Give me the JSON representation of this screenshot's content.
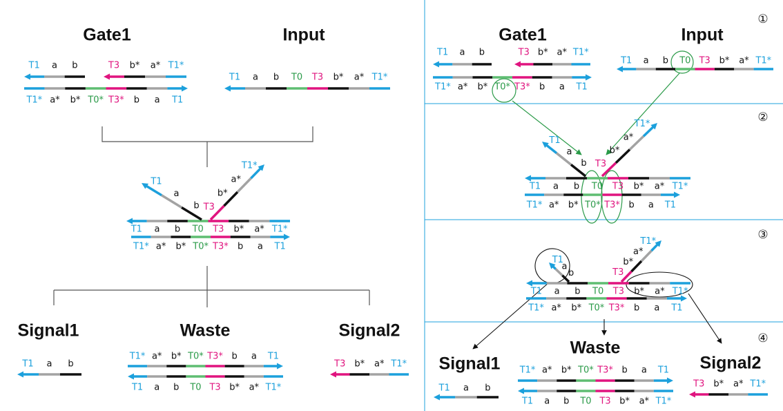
{
  "segment_colors": [
    "#1ca0dc",
    "#a3a3a3",
    "#111111",
    "#5fbd72",
    "#e0147f"
  ],
  "label_colors": [
    "#1ca0dc",
    "#111111",
    "#111111",
    "#2a9a48",
    "#e0147f"
  ],
  "left": {
    "titles": [
      "Gate1",
      "Input",
      "Signal1",
      "Waste",
      "Signal2"
    ],
    "strands": [
      {
        "labels": [
          "T1",
          "a",
          "b"
        ],
        "colors": [
          0,
          1,
          2
        ]
      },
      {
        "labels": [
          "T3",
          "b*",
          "a*",
          "T1*"
        ],
        "colors": [
          4,
          2,
          1,
          0
        ]
      },
      {
        "labels": [
          "T1*",
          "a*",
          "b*",
          "T0*",
          "T3*",
          "b",
          "a",
          "T1"
        ],
        "colors": [
          0,
          1,
          2,
          3,
          4,
          2,
          1,
          0
        ]
      },
      {
        "labels": [
          "T1",
          "a",
          "b",
          "T0",
          "T3",
          "b*",
          "a*",
          "T1*"
        ],
        "colors": [
          0,
          1,
          2,
          3,
          4,
          2,
          1,
          0
        ]
      },
      {
        "labels": [
          "T1",
          "a",
          "b",
          "T0",
          "T3",
          "b*",
          "a*",
          "T1*"
        ],
        "colors": [
          0,
          1,
          2,
          3,
          4,
          2,
          1,
          0
        ]
      },
      {
        "labels": [
          "T1*",
          "a*",
          "b*",
          "T0*",
          "T3*",
          "b",
          "a",
          "T1"
        ],
        "colors": [
          0,
          1,
          2,
          3,
          4,
          2,
          1,
          0
        ]
      },
      {
        "labels": [
          "b",
          "a",
          "T1"
        ],
        "colors": [
          2,
          1,
          0
        ]
      },
      {
        "labels": [
          "T3",
          "b*",
          "a*",
          "T1*"
        ],
        "colors": [
          4,
          2,
          1,
          0
        ]
      },
      {
        "labels": [
          "T1",
          "a",
          "b"
        ],
        "colors": [
          0,
          1,
          2
        ]
      },
      {
        "labels": [
          "T1*",
          "a*",
          "b*",
          "T0*",
          "T3*",
          "b",
          "a",
          "T1"
        ],
        "colors": [
          0,
          1,
          2,
          3,
          4,
          2,
          1,
          0
        ]
      },
      {
        "labels": [
          "T1",
          "a",
          "b",
          "T0",
          "T3",
          "b*",
          "a*",
          "T1*"
        ],
        "colors": [
          0,
          1,
          2,
          3,
          4,
          2,
          1,
          0
        ]
      },
      {
        "labels": [
          "T3",
          "b*",
          "a*",
          "T1*"
        ],
        "colors": [
          4,
          2,
          1,
          0
        ]
      }
    ]
  },
  "right": {
    "titles": [
      "Gate1",
      "Input",
      "Waste",
      "Signal1",
      "Signal2"
    ],
    "steps": [
      "①",
      "②",
      "③",
      "④"
    ],
    "strands": [
      {
        "labels": [
          "T1",
          "a",
          "b"
        ],
        "colors": [
          0,
          1,
          2
        ]
      },
      {
        "labels": [
          "T3",
          "b*",
          "a*",
          "T1*"
        ],
        "colors": [
          4,
          2,
          1,
          0
        ]
      },
      {
        "labels": [
          "T1*",
          "a*",
          "b*",
          "T0*",
          "T3*",
          "b",
          "a",
          "T1"
        ],
        "colors": [
          0,
          1,
          2,
          3,
          4,
          2,
          1,
          0
        ]
      },
      {
        "labels": [
          "T1",
          "a",
          "b",
          "T0",
          "T3",
          "b*",
          "a*",
          "T1*"
        ],
        "colors": [
          0,
          1,
          2,
          3,
          4,
          2,
          1,
          0
        ]
      },
      {
        "labels": [
          "T1",
          "a",
          "b",
          "T0",
          "T3",
          "b*",
          "a*",
          "T1*"
        ],
        "colors": [
          0,
          1,
          2,
          3,
          4,
          2,
          1,
          0
        ]
      },
      {
        "labels": [
          "T1*",
          "a*",
          "b*",
          "T0*",
          "T3*",
          "b",
          "a",
          "T1"
        ],
        "colors": [
          0,
          1,
          2,
          3,
          4,
          2,
          1,
          0
        ]
      },
      {
        "labels": [
          "b",
          "a",
          "T1"
        ],
        "colors": [
          2,
          1,
          0
        ]
      },
      {
        "labels": [
          "T3",
          "b*",
          "a*",
          "T1*"
        ],
        "colors": [
          4,
          2,
          1,
          0
        ]
      },
      {
        "labels": [
          "T1",
          "a",
          "b",
          "T0",
          "T3",
          "b*",
          "a*",
          "T1*"
        ],
        "colors": [
          0,
          1,
          2,
          3,
          4,
          2,
          1,
          0
        ]
      },
      {
        "labels": [
          "T1*",
          "a*",
          "b*",
          "T0*",
          "T3*",
          "b",
          "a",
          "T1"
        ],
        "colors": [
          0,
          1,
          2,
          3,
          4,
          2,
          1,
          0
        ]
      },
      {
        "labels": [
          "b",
          "a",
          "T1"
        ],
        "colors": [
          2,
          1,
          0
        ]
      },
      {
        "labels": [
          "T3",
          "b*",
          "a*",
          "T1*"
        ],
        "colors": [
          4,
          2,
          1,
          0
        ]
      },
      {
        "labels": [
          "T1",
          "a",
          "b"
        ],
        "colors": [
          0,
          1,
          2
        ]
      },
      {
        "labels": [
          "T1*",
          "a*",
          "b*",
          "T0*",
          "T3*",
          "b",
          "a",
          "T1"
        ],
        "colors": [
          0,
          1,
          2,
          3,
          4,
          2,
          1,
          0
        ]
      },
      {
        "labels": [
          "T1",
          "a",
          "b",
          "T0",
          "T3",
          "b*",
          "a*",
          "T1*"
        ],
        "colors": [
          0,
          1,
          2,
          3,
          4,
          2,
          1,
          0
        ]
      },
      {
        "labels": [
          "T3",
          "b*",
          "a*",
          "T1*"
        ],
        "colors": [
          4,
          2,
          1,
          0
        ]
      }
    ]
  }
}
